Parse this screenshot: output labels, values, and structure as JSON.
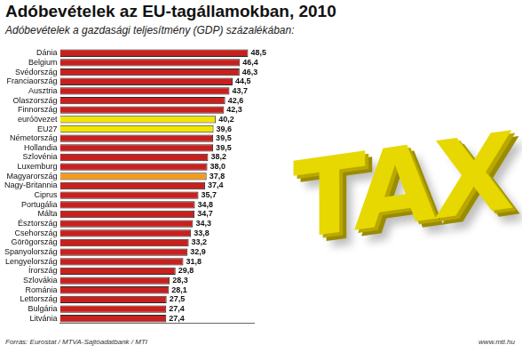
{
  "chart_data": {
    "type": "bar",
    "orientation": "horizontal",
    "title": "Adóbevételek az EU-tagállamokban, 2010",
    "subtitle": "Adóbevételek a gazdasági teljesítmény (GDP) százalékában:",
    "source": "Forrás: Eurostat / MTVA-Sajtóadatbank / MTI",
    "credit": "www.mti.hu",
    "annotations": [
      "TAX"
    ],
    "categories": [
      "Dánia",
      "Belgium",
      "Svédország",
      "Franciaország",
      "Ausztria",
      "Olaszország",
      "Finnország",
      "euróövezet",
      "EU27",
      "Németország",
      "Hollandia",
      "Szlovénia",
      "Luxemburg",
      "Magyarország",
      "Nagy-Britannia",
      "Ciprus",
      "Portugália",
      "Málta",
      "Észtország",
      "Csehország",
      "Görögország",
      "Spanyolország",
      "Lengyelország",
      "Írország",
      "Szlovákia",
      "Románia",
      "Lettország",
      "Bulgária",
      "Litvánia"
    ],
    "values": [
      48.5,
      46.4,
      46.3,
      44.5,
      43.7,
      42.6,
      42.3,
      40.2,
      39.6,
      39.5,
      39.5,
      38.2,
      38.0,
      37.8,
      37.4,
      35.7,
      34.8,
      34.7,
      34.3,
      33.8,
      33.2,
      32.9,
      31.8,
      29.8,
      28.3,
      28.1,
      27.5,
      27.4,
      27.4
    ],
    "value_labels": [
      "48,5",
      "46,4",
      "46,3",
      "44,5",
      "43,7",
      "42,6",
      "42,3",
      "40,2",
      "39,6",
      "39,5",
      "39,5",
      "38,2",
      "38,0",
      "37,8",
      "37,4",
      "35,7",
      "34,8",
      "34,7",
      "34,3",
      "33,8",
      "33,2",
      "32,9",
      "31,8",
      "29,8",
      "28,3",
      "28,1",
      "27,5",
      "27,4",
      "27,4"
    ],
    "colors": [
      "#c8201e",
      "#c8201e",
      "#c8201e",
      "#c8201e",
      "#c8201e",
      "#c8201e",
      "#c8201e",
      "#f2e500",
      "#f2e500",
      "#c8201e",
      "#c8201e",
      "#c8201e",
      "#c8201e",
      "#f39a1f",
      "#c8201e",
      "#c8201e",
      "#c8201e",
      "#c8201e",
      "#c8201e",
      "#c8201e",
      "#c8201e",
      "#c8201e",
      "#c8201e",
      "#c8201e",
      "#c8201e",
      "#c8201e",
      "#c8201e",
      "#c8201e",
      "#c8201e"
    ],
    "xlim": [
      0,
      50
    ],
    "xticks": [],
    "data_labels": true,
    "tick_labels": "y",
    "grid": false
  }
}
